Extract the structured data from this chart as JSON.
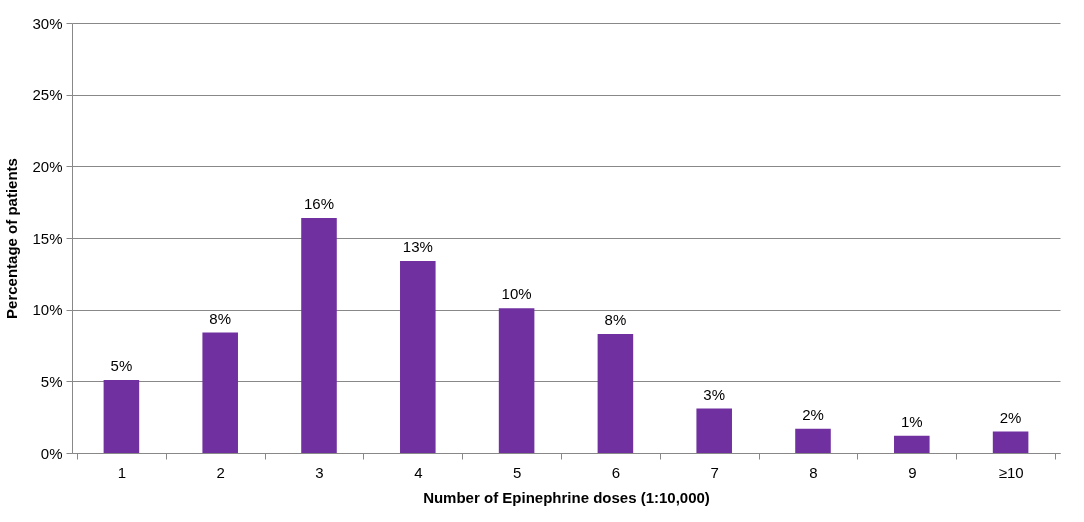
{
  "chart_data": {
    "type": "bar",
    "xlabel": "Number of Epinephrine doses (1:10,000)",
    "ylabel": "Percentage of patients",
    "categories": [
      "1",
      "2",
      "3",
      "4",
      "5",
      "6",
      "7",
      "8",
      "9",
      "≥10"
    ],
    "values": [
      5.1,
      8.4,
      16.4,
      13.4,
      10.1,
      8.3,
      3.1,
      1.7,
      1.2,
      1.5
    ],
    "value_labels": [
      "5%",
      "8%",
      "16%",
      "13%",
      "10%",
      "8%",
      "3%",
      "2%",
      "1%",
      "2%"
    ],
    "color": "#7030a0",
    "ylim": [
      0,
      30
    ],
    "yticks": [
      {
        "value": 0,
        "label": "0%"
      },
      {
        "value": 5,
        "label": "5%"
      },
      {
        "value": 10,
        "label": "10%"
      },
      {
        "value": 15,
        "label": "15%"
      },
      {
        "value": 20,
        "label": "20%"
      },
      {
        "value": 25,
        "label": "25%"
      },
      {
        "value": 30,
        "label": "30%"
      }
    ],
    "grid": "y"
  }
}
